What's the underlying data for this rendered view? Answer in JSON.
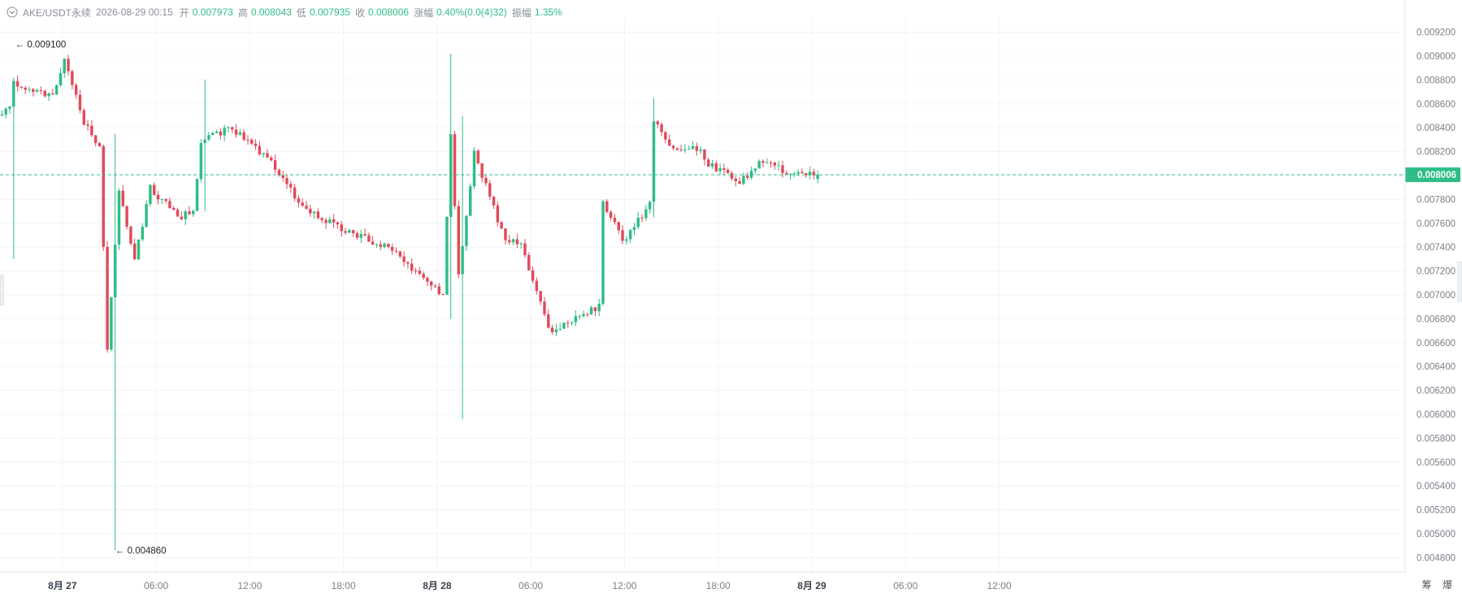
{
  "header": {
    "symbol": "AKE/USDT永续",
    "datetime": "2026-08-29 00:15",
    "open_label": "开",
    "open": "0.007973",
    "high_label": "高",
    "high": "0.008043",
    "low_label": "低",
    "low": "0.007935",
    "close_label": "收",
    "close": "0.008006",
    "change_label": "涨幅",
    "change": "0.40%(0.0(4)32)",
    "amplitude_label": "振幅",
    "amplitude": "1.35%"
  },
  "footer": {
    "icon1": "筹",
    "icon2": "爆"
  },
  "colors": {
    "up": "#2ebd85",
    "down": "#e04b5a",
    "grid": "#f2f3f5",
    "axis_text": "#7a7f88"
  },
  "chart_data": {
    "type": "candlestick",
    "x_range": [
      "2026-08-26 20:00",
      "2026-08-30 14:00"
    ],
    "y_range": [
      0.00468,
      0.00932
    ],
    "x_ticks": [
      {
        "time": "2026-08-27 00:00",
        "label": "8月 27",
        "bold": true
      },
      {
        "time": "2026-08-27 06:00",
        "label": "06:00"
      },
      {
        "time": "2026-08-27 12:00",
        "label": "12:00"
      },
      {
        "time": "2026-08-27 18:00",
        "label": "18:00"
      },
      {
        "time": "2026-08-28 00:00",
        "label": "8月 28",
        "bold": true
      },
      {
        "time": "2026-08-28 06:00",
        "label": "06:00"
      },
      {
        "time": "2026-08-28 12:00",
        "label": "12:00"
      },
      {
        "time": "2026-08-28 18:00",
        "label": "18:00"
      },
      {
        "time": "2026-08-29 00:00",
        "label": "8月 29",
        "bold": true
      },
      {
        "time": "2026-08-29 06:00",
        "label": "06:00"
      },
      {
        "time": "2026-08-29 12:00",
        "label": "12:00"
      }
    ],
    "y_ticks": [
      "0.004800",
      "0.005000",
      "0.005200",
      "0.005400",
      "0.005600",
      "0.005800",
      "0.006000",
      "0.006200",
      "0.006400",
      "0.006600",
      "0.006800",
      "0.007000",
      "0.007200",
      "0.007400",
      "0.007600",
      "0.007800",
      "0.008200",
      "0.008400",
      "0.008600",
      "0.008800",
      "0.009000",
      "0.009200"
    ],
    "current_price": "0.008006",
    "annotations": [
      {
        "label": "← 0.009100",
        "price": 0.0091,
        "time": "2026-08-26 20:52"
      },
      {
        "label": "← 0.004860",
        "price": 0.00486,
        "time": "2026-08-27 03:17"
      }
    ],
    "key_points": [
      {
        "time": "2026-08-26 20:00",
        "price": 0.0085
      },
      {
        "time": "2026-08-26 20:45",
        "price": 0.00855
      },
      {
        "time": "2026-08-26 21:00",
        "price": 0.00878
      },
      {
        "time": "2026-08-26 23:30",
        "price": 0.00866
      },
      {
        "time": "2026-08-27 00:15",
        "price": 0.00895
      },
      {
        "time": "2026-08-27 01:30",
        "price": 0.00845
      },
      {
        "time": "2026-08-27 02:30",
        "price": 0.00825
      },
      {
        "time": "2026-08-27 03:00",
        "price": 0.00655
      },
      {
        "time": "2026-08-27 03:45",
        "price": 0.0079
      },
      {
        "time": "2026-08-27 04:45",
        "price": 0.0073
      },
      {
        "time": "2026-08-27 05:45",
        "price": 0.0079
      },
      {
        "time": "2026-08-27 07:30",
        "price": 0.00765
      },
      {
        "time": "2026-08-27 08:30",
        "price": 0.0077
      },
      {
        "time": "2026-08-27 09:00",
        "price": 0.0083
      },
      {
        "time": "2026-08-27 11:00",
        "price": 0.0084
      },
      {
        "time": "2026-08-27 13:30",
        "price": 0.0081
      },
      {
        "time": "2026-08-27 15:30",
        "price": 0.00775
      },
      {
        "time": "2026-08-27 18:00",
        "price": 0.00755
      },
      {
        "time": "2026-08-27 21:00",
        "price": 0.0074
      },
      {
        "time": "2026-08-28 00:30",
        "price": 0.007
      },
      {
        "time": "2026-08-28 01:00",
        "price": 0.00835
      },
      {
        "time": "2026-08-28 01:30",
        "price": 0.00715
      },
      {
        "time": "2026-08-28 02:30",
        "price": 0.00818
      },
      {
        "time": "2026-08-28 04:30",
        "price": 0.00745
      },
      {
        "time": "2026-08-28 05:30",
        "price": 0.00745
      },
      {
        "time": "2026-08-28 07:15",
        "price": 0.0067
      },
      {
        "time": "2026-08-28 10:30",
        "price": 0.0069
      },
      {
        "time": "2026-08-28 10:45",
        "price": 0.00778
      },
      {
        "time": "2026-08-28 12:00",
        "price": 0.00745
      },
      {
        "time": "2026-08-28 13:45",
        "price": 0.00775
      },
      {
        "time": "2026-08-28 14:00",
        "price": 0.00848
      },
      {
        "time": "2026-08-28 15:00",
        "price": 0.00825
      },
      {
        "time": "2026-08-28 17:00",
        "price": 0.00822
      },
      {
        "time": "2026-08-28 17:30",
        "price": 0.0081
      },
      {
        "time": "2026-08-28 19:30",
        "price": 0.00795
      },
      {
        "time": "2026-08-28 21:00",
        "price": 0.00812
      },
      {
        "time": "2026-08-28 23:00",
        "price": 0.008
      },
      {
        "time": "2026-08-29 00:15",
        "price": 0.008006
      }
    ],
    "extreme_wicks": [
      {
        "time": "2026-08-26 20:45",
        "high": 0.0086,
        "low": 0.0073
      },
      {
        "time": "2026-08-27 03:15",
        "high": 0.00835,
        "low": 0.00486
      },
      {
        "time": "2026-08-27 09:00",
        "high": 0.0088,
        "low": 0.0077
      },
      {
        "time": "2026-08-28 00:45",
        "high": 0.00902,
        "low": 0.0068
      },
      {
        "time": "2026-08-28 01:30",
        "high": 0.0085,
        "low": 0.00596
      },
      {
        "time": "2026-08-28 13:45",
        "high": 0.00865,
        "low": 0.00765
      }
    ]
  }
}
